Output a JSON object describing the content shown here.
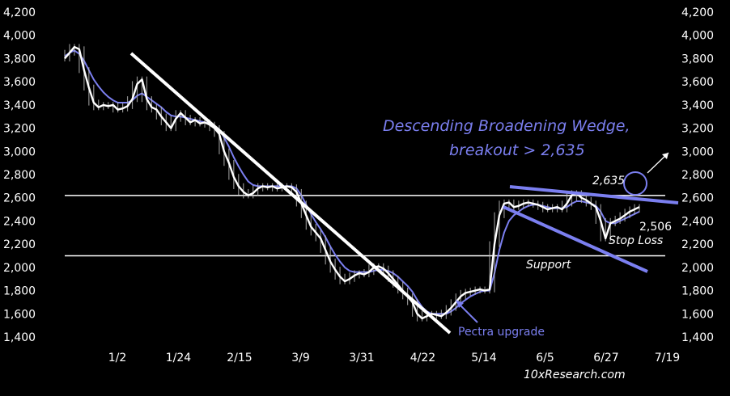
{
  "chart_data": {
    "type": "line",
    "title": "",
    "xlabel": "",
    "ylabel": "",
    "ylim": [
      1400,
      4200
    ],
    "y_ticks": [
      1400,
      1600,
      1800,
      2000,
      2200,
      2400,
      2600,
      2800,
      3000,
      3200,
      3400,
      3600,
      3800,
      4000,
      4200
    ],
    "y_tick_labels": [
      "1,400",
      "1,600",
      "1,800",
      "2,000",
      "2,200",
      "2,400",
      "2,600",
      "2,800",
      "3,000",
      "3,200",
      "3,400",
      "3,600",
      "3,800",
      "4,000",
      "4,200"
    ],
    "x_tick_labels": [
      "1/2",
      "1/24",
      "2/15",
      "3/9",
      "3/31",
      "4/22",
      "5/14",
      "6/5",
      "6/27",
      "7/19"
    ],
    "colors": {
      "background": "#000000",
      "price": "#ffffff",
      "ma": "#7b7ff0",
      "annotation_blue": "#7b7ff0"
    },
    "series": [
      {
        "values": [
          3800,
          3850,
          3900,
          3880,
          3700,
          3550,
          3420,
          3380,
          3400,
          3390,
          3400,
          3360,
          3370,
          3390,
          3450,
          3580,
          3620,
          3450,
          3380,
          3360,
          3300,
          3250,
          3200,
          3280,
          3330,
          3290,
          3250,
          3270,
          3240,
          3250,
          3230,
          3200,
          3150,
          3000,
          2900,
          2780,
          2700,
          2650,
          2620,
          2640,
          2680,
          2700,
          2690,
          2700,
          2680,
          2690,
          2700,
          2690,
          2650,
          2550,
          2450,
          2350,
          2300,
          2250,
          2150,
          2050,
          1980,
          1920,
          1880,
          1900,
          1930,
          1950,
          1940,
          1960,
          2000,
          2010,
          1990,
          1950,
          1900,
          1850,
          1800,
          1750,
          1700,
          1600,
          1560,
          1580,
          1600,
          1590,
          1580,
          1610,
          1650,
          1700,
          1750,
          1780,
          1790,
          1800,
          1810,
          1800,
          1810,
          2200,
          2450,
          2550,
          2560,
          2520,
          2530,
          2550,
          2560,
          2550,
          2540,
          2520,
          2500,
          2510,
          2520,
          2500,
          2550,
          2620,
          2640,
          2600,
          2580,
          2550,
          2520,
          2400,
          2250,
          2380,
          2400,
          2420,
          2450,
          2480,
          2500,
          2520
        ]
      },
      {
        "values": [
          3820,
          3850,
          3870,
          3840,
          3780,
          3700,
          3620,
          3560,
          3510,
          3470,
          3440,
          3420,
          3420,
          3420,
          3440,
          3480,
          3500,
          3470,
          3440,
          3410,
          3380,
          3340,
          3310,
          3300,
          3300,
          3290,
          3280,
          3270,
          3260,
          3250,
          3240,
          3220,
          3190,
          3120,
          3040,
          2950,
          2870,
          2800,
          2740,
          2710,
          2700,
          2700,
          2700,
          2700,
          2700,
          2700,
          2700,
          2700,
          2680,
          2620,
          2540,
          2460,
          2390,
          2330,
          2260,
          2180,
          2110,
          2050,
          2000,
          1970,
          1960,
          1960,
          1960,
          1960,
          1970,
          1980,
          1980,
          1970,
          1950,
          1920,
          1880,
          1840,
          1790,
          1720,
          1660,
          1620,
          1600,
          1600,
          1600,
          1600,
          1620,
          1650,
          1690,
          1720,
          1750,
          1770,
          1790,
          1800,
          1800,
          1950,
          2150,
          2300,
          2400,
          2450,
          2480,
          2510,
          2530,
          2540,
          2540,
          2530,
          2520,
          2510,
          2510,
          2510,
          2520,
          2550,
          2570,
          2570,
          2560,
          2550,
          2530,
          2480,
          2400,
          2380,
          2380,
          2400,
          2420,
          2440,
          2460,
          2480
        ]
      }
    ],
    "reference_lines": {
      "resistance": 2620,
      "support": 2100
    },
    "annotations": {
      "wedge_line1": "Descending Broadening Wedge,",
      "wedge_line2": "breakout > 2,635",
      "level_upper": "2,635",
      "level_lower": "2,506",
      "stop_loss": "Stop Loss",
      "support": "Support",
      "upgrade": "Pectra upgrade",
      "watermark": "10xResearch.com"
    }
  }
}
